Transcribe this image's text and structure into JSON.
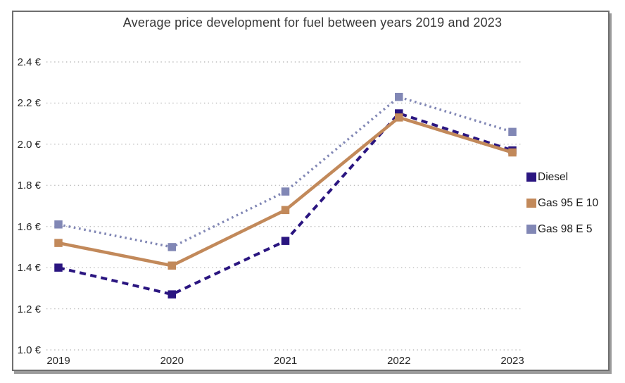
{
  "chart_data": {
    "type": "line",
    "title": "Average price development for fuel between years 2019 and 2023",
    "categories": [
      "2019",
      "2020",
      "2021",
      "2022",
      "2023"
    ],
    "series": [
      {
        "name": "Diesel",
        "color": "#2a1580",
        "line_style": "dashed",
        "marker": "square",
        "values": [
          1.4,
          1.27,
          1.53,
          2.15,
          1.97
        ]
      },
      {
        "name": "Gas 95 E 10",
        "color": "#c2895a",
        "line_style": "solid",
        "marker": "square",
        "values": [
          1.52,
          1.41,
          1.68,
          2.13,
          1.96
        ]
      },
      {
        "name": "Gas 98 E 5",
        "color": "#8187b5",
        "line_style": "dotted",
        "marker": "square",
        "values": [
          1.61,
          1.5,
          1.77,
          2.23,
          2.06
        ]
      }
    ],
    "ylim": [
      1.0,
      2.4
    ],
    "y_tick_step": 0.2,
    "y_tick_labels": [
      "1.0 €",
      "1.2 €",
      "1.4 €",
      "1.6 €",
      "1.8 €",
      "2.0 €",
      "2.2 €",
      "2.4 €"
    ],
    "currency": "€",
    "grid": "horizontal-dotted",
    "grid_color": "#bdbdbd",
    "legend_position": "right",
    "frame_border_color": "#6f6f6f",
    "title_color": "#383838"
  }
}
